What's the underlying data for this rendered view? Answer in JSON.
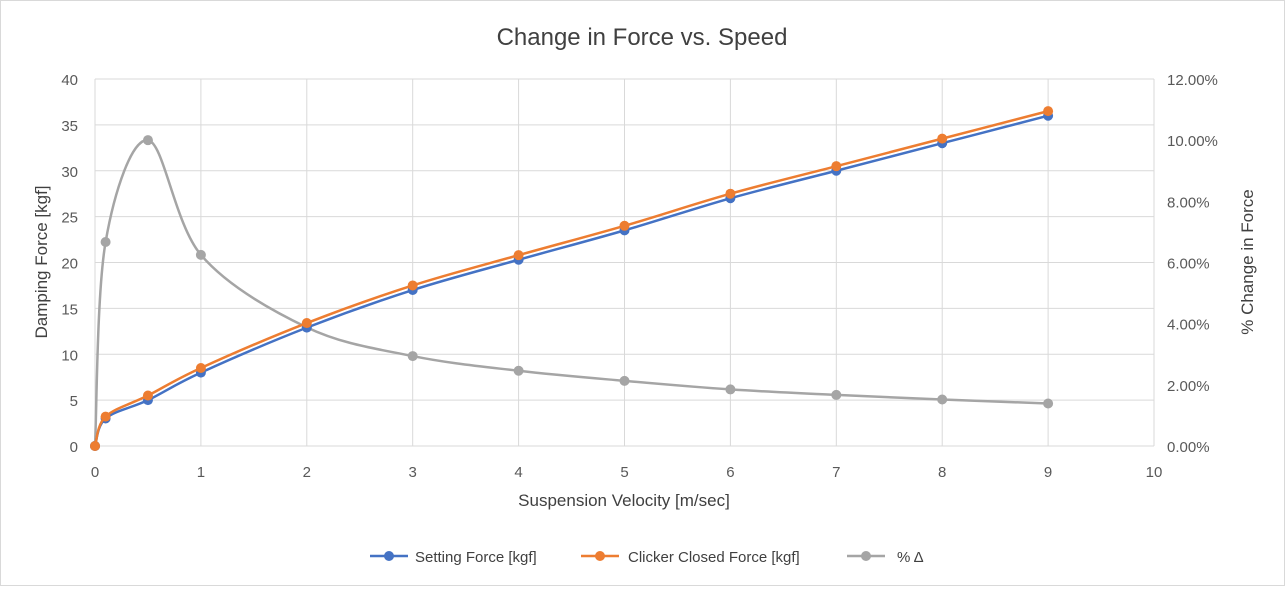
{
  "chart_data": {
    "type": "scatter",
    "title": "Change in Force vs. Speed",
    "xlabel": "Suspension Velocity [m/sec]",
    "ylabel": "Damping Force [kgf]",
    "y2label": "% Change in Force",
    "xlim": [
      0,
      10
    ],
    "ylim": [
      0,
      40
    ],
    "y2lim": [
      0,
      0.12
    ],
    "xticks": [
      0,
      1,
      2,
      3,
      4,
      5,
      6,
      7,
      8,
      9,
      10
    ],
    "yticks": [
      0,
      5,
      10,
      15,
      20,
      25,
      30,
      35,
      40
    ],
    "y2ticks": [
      0,
      0.02,
      0.04,
      0.06,
      0.08,
      0.1,
      0.12
    ],
    "y2tick_labels": [
      "0.00%",
      "2.00%",
      "4.00%",
      "6.00%",
      "8.00%",
      "10.00%",
      "12.00%"
    ],
    "grid": true,
    "smooth_lines": true,
    "legend_position": "bottom",
    "series": [
      {
        "name": "Setting Force [kgf]",
        "color": "#4472c4",
        "axis": "left",
        "x": [
          0,
          0.1,
          0.5,
          1,
          2,
          3,
          4,
          5,
          6,
          7,
          8,
          9
        ],
        "y": [
          0,
          3,
          5,
          8,
          12.9,
          17,
          20.3,
          23.5,
          27,
          30,
          33,
          36
        ]
      },
      {
        "name": "Clicker Closed Force [kgf]",
        "color": "#ed7d31",
        "axis": "left",
        "x": [
          0,
          0.1,
          0.5,
          1,
          2,
          3,
          4,
          5,
          6,
          7,
          8,
          9
        ],
        "y": [
          0,
          3.2,
          5.5,
          8.5,
          13.4,
          17.5,
          20.8,
          24,
          27.5,
          30.5,
          33.5,
          36.5
        ]
      },
      {
        "name": "% Δ",
        "color": "#a5a5a5",
        "axis": "right",
        "x": [
          0,
          0.1,
          0.5,
          1,
          2,
          3,
          4,
          5,
          6,
          7,
          8,
          9
        ],
        "y": [
          0,
          0.0667,
          0.1,
          0.0625,
          0.0388,
          0.0294,
          0.0246,
          0.0213,
          0.0185,
          0.0167,
          0.0152,
          0.0139
        ]
      }
    ]
  }
}
